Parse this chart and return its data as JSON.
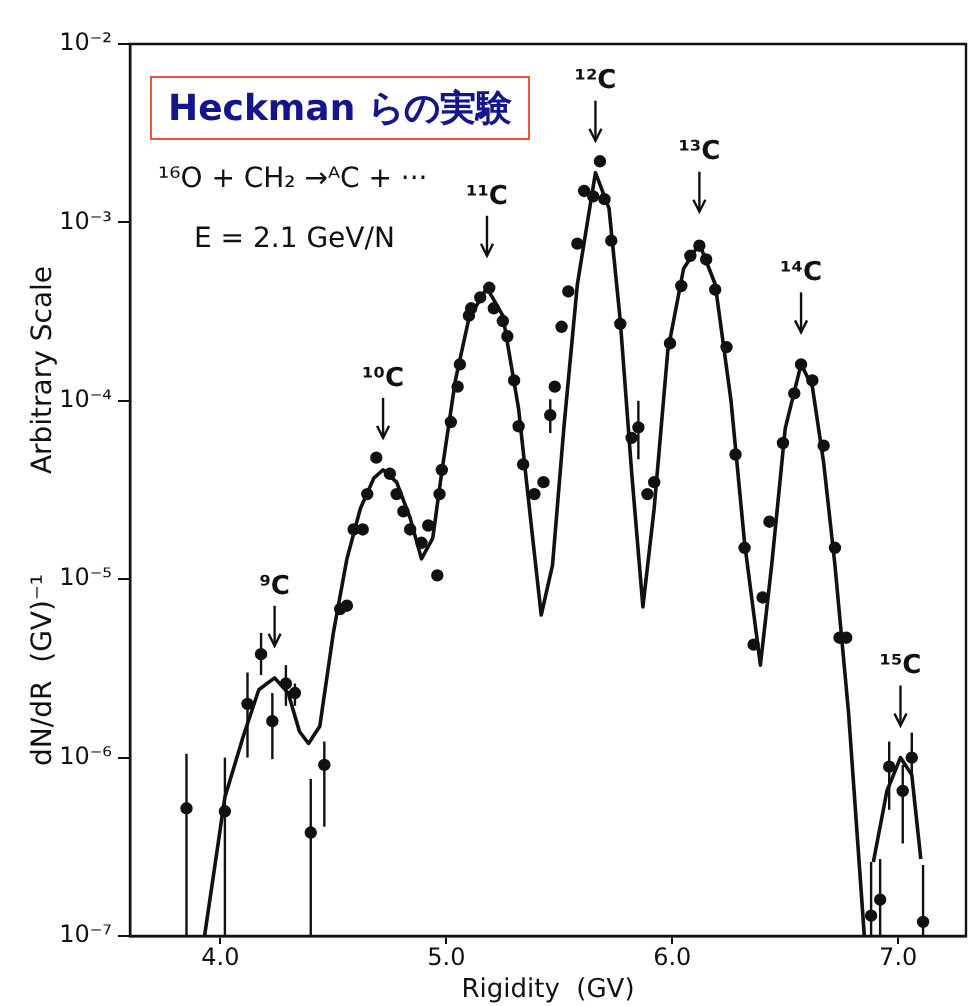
{
  "chart_data": {
    "type": "scatter",
    "title": "Heckman らの実験",
    "xlabel": "Rigidity  (GV)",
    "ylabel": "dN/dR  (GV)⁻¹",
    "annotations": [
      "Arbitrary Scale",
      "¹⁶O + CH₂ →ᴬC + ···",
      "E = 2.1 GeV/N",
      {
        "text": "⁹C",
        "x": 4.24,
        "y": 2.8e-06
      },
      {
        "text": "¹⁰C",
        "x": 4.72,
        "y": 4.1e-05
      },
      {
        "text": "¹¹C",
        "x": 5.18,
        "y": 0.00043
      },
      {
        "text": "¹²C",
        "x": 5.66,
        "y": 0.0019
      },
      {
        "text": "¹³C",
        "x": 6.12,
        "y": 0.00076
      },
      {
        "text": "¹⁴C",
        "x": 6.57,
        "y": 0.00016
      },
      {
        "text": "¹⁵C",
        "x": 7.01,
        "y": 1e-06
      }
    ],
    "xlim": [
      3.6,
      7.3
    ],
    "xticks": [
      {
        "value": 4,
        "label": "4.0"
      },
      {
        "value": 5,
        "label": "5.0"
      },
      {
        "value": 6,
        "label": "6.0"
      },
      {
        "value": 7,
        "label": "7.0"
      }
    ],
    "ylim": [
      1e-07,
      0.01
    ],
    "yticks": [
      {
        "value": 1e-07,
        "label": "10⁻⁷"
      },
      {
        "value": 1e-06,
        "label": "10⁻⁶"
      },
      {
        "value": 1e-05,
        "label": "10⁻⁵"
      },
      {
        "value": 0.0001,
        "label": "10⁻⁴"
      },
      {
        "value": 0.001,
        "label": "10⁻³"
      },
      {
        "value": 0.01,
        "label": "10⁻²"
      }
    ],
    "log": "y",
    "grid": false,
    "series": [
      {
        "type": "scatter",
        "color": "#111111",
        "marker": "circle",
        "x": [
          3.85,
          4.02,
          4.12,
          4.18,
          4.23,
          4.29,
          4.33,
          4.4,
          4.46,
          4.53,
          4.56,
          4.59,
          4.63,
          4.65,
          4.69,
          4.75,
          4.78,
          4.81,
          4.84,
          4.89,
          4.92,
          4.96,
          4.97,
          4.98,
          5.02,
          5.05,
          5.06,
          5.1,
          5.11,
          5.15,
          5.19,
          5.21,
          5.25,
          5.27,
          5.3,
          5.32,
          5.34,
          5.39,
          5.43,
          5.46,
          5.48,
          5.51,
          5.54,
          5.58,
          5.61,
          5.65,
          5.68,
          5.7,
          5.73,
          5.77,
          5.82,
          5.85,
          5.89,
          5.92,
          5.99,
          6.04,
          6.08,
          6.12,
          6.15,
          6.19,
          6.24,
          6.28,
          6.32,
          6.36,
          6.4,
          6.43,
          6.49,
          6.54,
          6.57,
          6.62,
          6.67,
          6.72,
          6.74,
          6.77,
          6.88,
          6.92,
          6.96,
          7.02,
          7.06,
          7.11
        ],
        "values": [
          5.2e-07,
          5e-07,
          2e-06,
          3.8e-06,
          1.6e-06,
          2.6e-06,
          2.3e-06,
          3.8e-07,
          9.1e-07,
          6.8e-06,
          7.1e-06,
          1.9e-05,
          1.9e-05,
          3e-05,
          4.8e-05,
          3.9e-05,
          3e-05,
          2.4e-05,
          1.9e-05,
          1.6e-05,
          2e-05,
          1.05e-05,
          3e-05,
          4.1e-05,
          7.6e-05,
          0.00012,
          0.00016,
          0.0003,
          0.00033,
          0.00038,
          0.00043,
          0.00033,
          0.00028,
          0.00023,
          0.00013,
          7.2e-05,
          4.4e-05,
          3e-05,
          3.5e-05,
          8.3e-05,
          0.00012,
          0.00026,
          0.00041,
          0.00076,
          0.0015,
          0.0014,
          0.0022,
          0.00135,
          0.00079,
          0.00027,
          6.2e-05,
          7.1e-05,
          3e-05,
          3.5e-05,
          0.00021,
          0.00044,
          0.00065,
          0.00074,
          0.00062,
          0.00042,
          0.0002,
          5e-05,
          1.5e-05,
          4.3e-06,
          7.9e-06,
          2.1e-05,
          5.8e-05,
          0.00011,
          0.00016,
          0.00013,
          5.6e-05,
          1.5e-05,
          4.7e-06,
          4.7e-06,
          1.3e-07,
          1.6e-07,
          8.9e-07,
          6.5e-07,
          1e-06,
          1.2e-07
        ],
        "errors": [
          [
            1e-07,
            1.05e-06
          ],
          [
            1e-07,
            1e-06
          ],
          [
            1e-06,
            3e-06
          ],
          [
            2.9e-06,
            5e-06
          ],
          [
            9.8e-07,
            2.3e-06
          ],
          [
            1.95e-06,
            3.3e-06
          ],
          [
            1.95e-06,
            2.6e-06
          ],
          [
            1e-07,
            7.6e-07
          ],
          [
            4.1e-07,
            1.23e-06
          ],
          null,
          null,
          null,
          null,
          null,
          null,
          null,
          null,
          null,
          null,
          null,
          null,
          null,
          null,
          null,
          null,
          null,
          null,
          null,
          null,
          null,
          null,
          null,
          null,
          null,
          null,
          null,
          null,
          null,
          null,
          [
            6.6e-05,
            0.000102
          ],
          null,
          null,
          null,
          null,
          null,
          null,
          null,
          null,
          null,
          null,
          null,
          [
            4.7e-05,
            0.0001
          ],
          null,
          null,
          null,
          null,
          null,
          null,
          null,
          null,
          null,
          null,
          null,
          null,
          null,
          null,
          null,
          null,
          null,
          null,
          null,
          null,
          null,
          null,
          [
            1e-07,
            2.6e-07
          ],
          [
            1e-07,
            2.7e-07
          ],
          [
            5.1e-07,
            1.23e-06
          ],
          [
            3.3e-07,
            9.1e-07
          ],
          [
            8.1e-07,
            1.38e-06
          ],
          [
            1e-07,
            2.5e-07
          ]
        ]
      },
      {
        "type": "line",
        "color": "#111111",
        "line_style": "solid",
        "x": [
          3.93,
          4.02,
          4.1,
          4.17,
          4.24,
          4.3,
          4.35,
          4.39,
          4.44,
          4.5,
          4.56,
          4.62,
          4.68,
          4.72,
          4.78,
          4.84,
          4.89,
          4.94,
          4.98,
          5.04,
          5.1,
          5.18,
          5.25,
          5.32,
          5.38,
          5.42,
          5.47,
          5.52,
          5.58,
          5.66,
          5.72,
          5.77,
          5.82,
          5.87,
          5.92,
          5.98,
          6.05,
          6.12,
          6.19,
          6.26,
          6.32,
          6.39,
          6.44,
          6.5,
          6.57,
          6.62,
          6.67,
          6.72,
          6.78,
          6.85,
          6.87,
          6.89,
          6.95,
          7.01,
          7.06,
          7.1
        ],
        "values": [
          1e-07,
          6e-07,
          1.3e-06,
          2.4e-06,
          2.8e-06,
          2.3e-06,
          1.4e-06,
          1.2e-06,
          1.5e-06,
          5e-06,
          1.3e-05,
          2.5e-05,
          3.7e-05,
          4.1e-05,
          3.5e-05,
          2.2e-05,
          1.3e-05,
          1.7e-05,
          4e-05,
          0.00013,
          0.00029,
          0.00043,
          0.0003,
          9e-05,
          1.8e-05,
          6.3e-06,
          1.2e-05,
          7e-05,
          0.00045,
          0.0019,
          0.0012,
          0.00028,
          4e-05,
          7e-06,
          2.5e-05,
          0.00019,
          0.00055,
          0.00076,
          0.00045,
          0.0001,
          1.6e-05,
          3.3e-06,
          1.2e-05,
          7e-05,
          0.00016,
          0.00012,
          4.5e-05,
          1.2e-05,
          1.8e-06,
          1e-07,
          null,
          2.6e-07,
          6.5e-07,
          1e-06,
          8e-07,
          2.7e-07
        ]
      }
    ]
  }
}
